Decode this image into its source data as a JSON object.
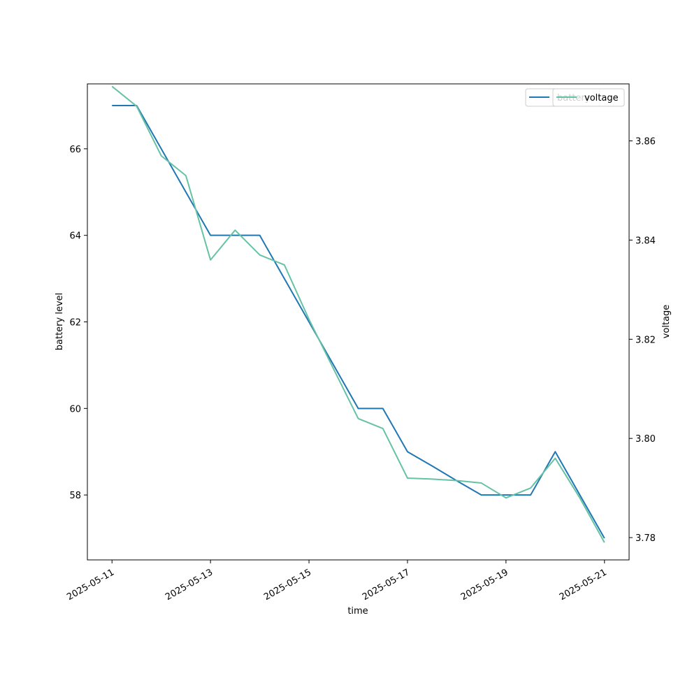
{
  "chart_data": {
    "type": "line",
    "xlabel": "time",
    "ylabel_left": "battery level",
    "ylabel_right": "voltage",
    "x_ticks": [
      "2025-05-11",
      "2025-05-13",
      "2025-05-15",
      "2025-05-17",
      "2025-05-19",
      "2025-05-21"
    ],
    "y_left_ticks": [
      58,
      60,
      62,
      64,
      66
    ],
    "y_right_ticks": [
      3.78,
      3.8,
      3.82,
      3.84,
      3.86
    ],
    "y_left_lim": [
      56.5,
      67.5
    ],
    "y_right_lim": [
      3.7755,
      3.8715
    ],
    "x_lim": [
      "2025-05-10T12:00",
      "2025-05-21T12:00"
    ],
    "legend_placement": "upper right",
    "grid": false,
    "series": [
      {
        "name": "battery",
        "axis": "left",
        "color": "#1f77b4",
        "x": [
          "2025-05-11T00:00",
          "2025-05-11T12:00",
          "2025-05-12T00:00",
          "2025-05-12T12:00",
          "2025-05-13T00:00",
          "2025-05-13T12:00",
          "2025-05-14T00:00",
          "2025-05-14T12:00",
          "2025-05-15T00:00",
          "2025-05-15T12:00",
          "2025-05-16T00:00",
          "2025-05-16T12:00",
          "2025-05-17T00:00",
          "2025-05-17T12:00",
          "2025-05-18T00:00",
          "2025-05-18T12:00",
          "2025-05-19T00:00",
          "2025-05-19T12:00",
          "2025-05-20T00:00",
          "2025-05-20T12:00",
          "2025-05-21T00:00"
        ],
        "values": [
          67,
          67,
          66,
          65,
          64,
          64,
          64,
          63,
          62,
          61,
          60,
          60,
          59,
          58.67,
          58.33,
          58,
          58,
          58,
          59,
          58,
          57
        ]
      },
      {
        "name": "voltage",
        "axis": "right",
        "color": "#66c2a5",
        "x": [
          "2025-05-11T00:00",
          "2025-05-11T12:00",
          "2025-05-12T00:00",
          "2025-05-12T12:00",
          "2025-05-13T00:00",
          "2025-05-13T12:00",
          "2025-05-14T00:00",
          "2025-05-14T12:00",
          "2025-05-15T00:00",
          "2025-05-15T12:00",
          "2025-05-16T00:00",
          "2025-05-16T12:00",
          "2025-05-17T00:00",
          "2025-05-17T12:00",
          "2025-05-18T00:00",
          "2025-05-18T12:00",
          "2025-05-19T00:00",
          "2025-05-19T12:00",
          "2025-05-20T00:00",
          "2025-05-20T12:00",
          "2025-05-21T00:00"
        ],
        "values": [
          3.871,
          3.867,
          3.857,
          3.853,
          3.836,
          3.842,
          3.837,
          3.835,
          3.824,
          3.814,
          3.804,
          3.802,
          3.792,
          3.7918,
          3.7915,
          3.791,
          3.788,
          3.79,
          3.796,
          3.788,
          3.779
        ]
      }
    ]
  }
}
